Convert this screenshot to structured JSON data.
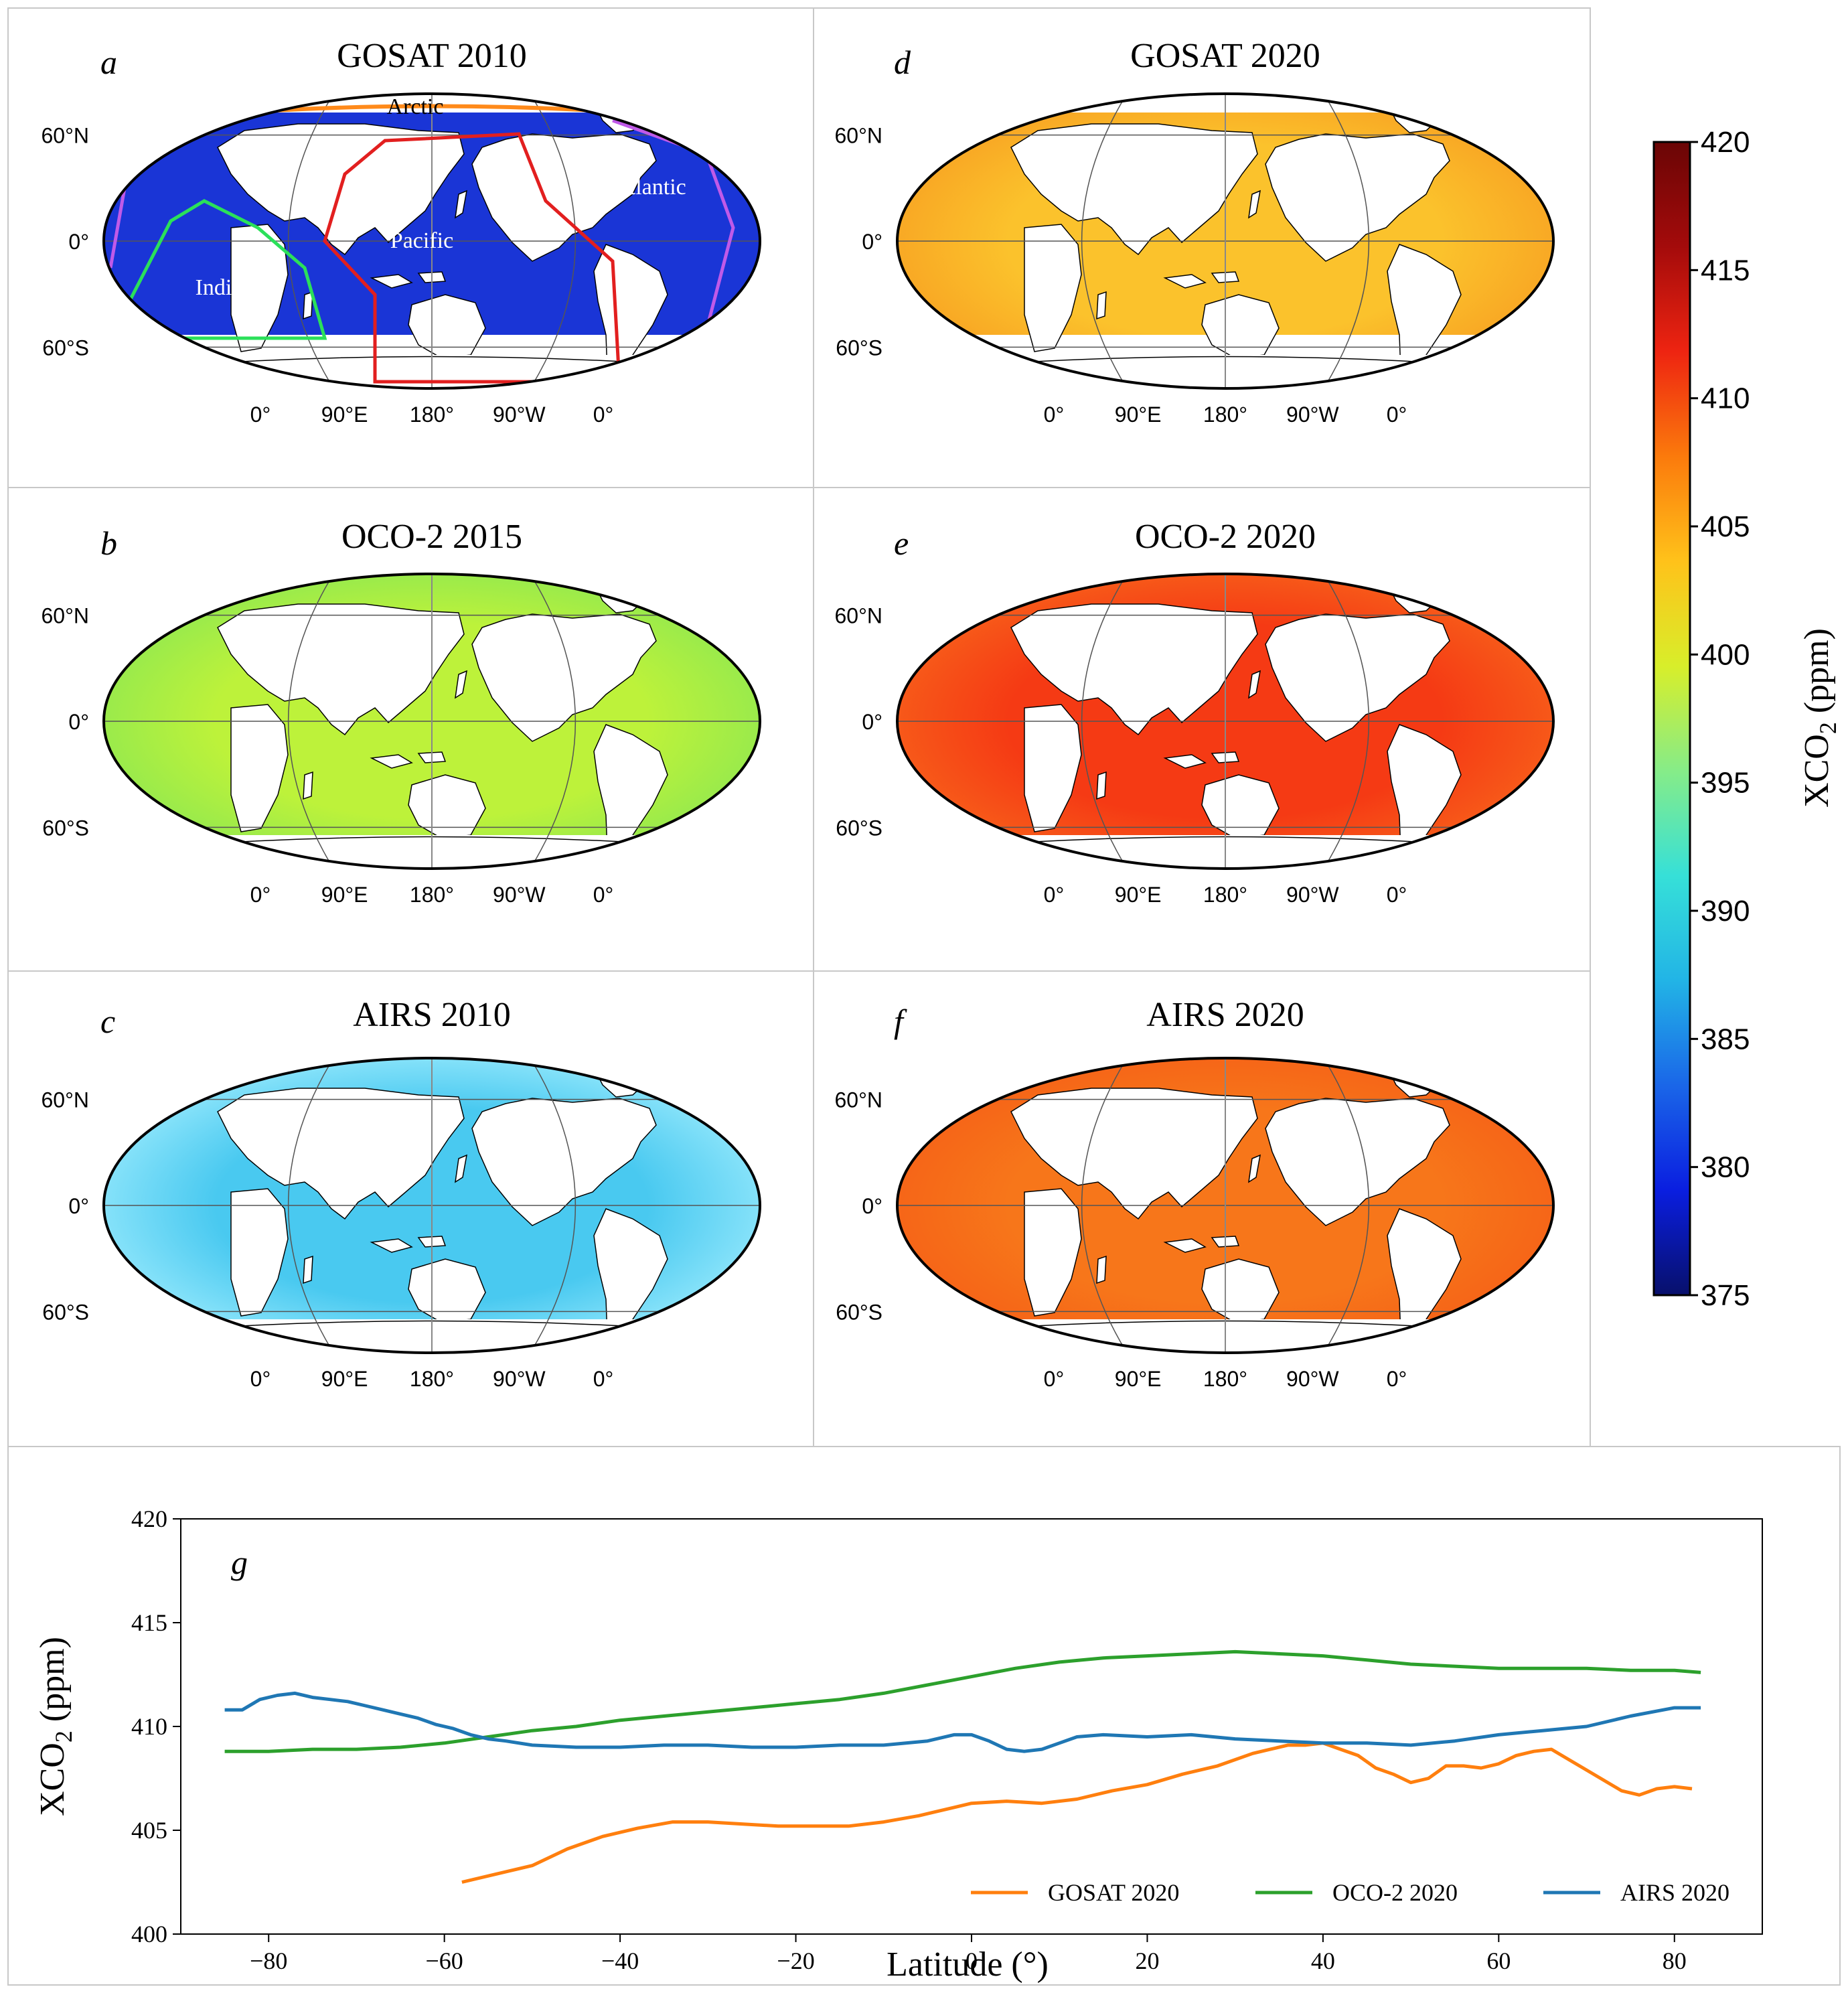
{
  "colorbar": {
    "label": "XCO",
    "label_sub": "2",
    "label_unit": " (ppm)",
    "min": 375,
    "max": 420,
    "ticks": [
      "420",
      "415",
      "410",
      "405",
      "400",
      "395",
      "390",
      "385",
      "380",
      "375"
    ],
    "colors": [
      "#08106b",
      "#0a1ee0",
      "#1a66e8",
      "#22b4e6",
      "#36e0d8",
      "#86ec88",
      "#d8ee2a",
      "#ffc21a",
      "#fb7a0c",
      "#ee2411",
      "#a40b0b",
      "#6a0505"
    ]
  },
  "maps": [
    {
      "id": "a",
      "title": "GOSAT 2010",
      "fill": "#1a35d6",
      "edge": "#1a35d6",
      "ocean_labels": [
        "Arctic",
        "Atlantic",
        "Pacific",
        "Indian"
      ]
    },
    {
      "id": "b",
      "title": "OCO-2 2015",
      "fill": "#bdf23a",
      "edge": "#86e655"
    },
    {
      "id": "c",
      "title": "AIRS 2010",
      "fill": "#49c9f0",
      "edge": "#a8f0ff"
    },
    {
      "id": "d",
      "title": "GOSAT 2020",
      "fill": "#fbc22c",
      "edge": "#f79a20"
    },
    {
      "id": "e",
      "title": "OCO-2 2020",
      "fill": "#f53a14",
      "edge": "#f86a1c"
    },
    {
      "id": "f",
      "title": "AIRS 2020",
      "fill": "#f7761a",
      "edge": "#f55c16"
    }
  ],
  "map_ticks": {
    "lat": [
      "60°N",
      "0°",
      "60°S"
    ],
    "lon": [
      "0°",
      "90°E",
      "180°",
      "90°W",
      "0°"
    ]
  },
  "chart_data": {
    "type": "line",
    "panel_label": "g",
    "xlabel": "Latitude (°)",
    "ylabel": "XCO",
    "ylabel_sub": "2",
    "ylabel_unit": " (ppm)",
    "xlim": [
      -90,
      90
    ],
    "ylim": [
      400,
      420
    ],
    "xticks": [
      -80,
      -60,
      -40,
      -20,
      0,
      20,
      40,
      60,
      80
    ],
    "xtick_labels": [
      "−80",
      "−60",
      "−40",
      "−20",
      "0",
      "20",
      "40",
      "60",
      "80"
    ],
    "yticks": [
      400,
      405,
      410,
      415,
      420
    ],
    "legend_position": "lower-right",
    "series": [
      {
        "name": "GOSAT 2020",
        "color": "#ff7f0e",
        "x": [
          -58,
          -54,
          -50,
          -46,
          -42,
          -38,
          -34,
          -30,
          -26,
          -22,
          -18,
          -14,
          -10,
          -6,
          -2,
          0,
          4,
          8,
          12,
          16,
          20,
          24,
          28,
          32,
          34,
          36,
          38,
          40,
          42,
          44,
          46,
          48,
          50,
          52,
          54,
          56,
          58,
          60,
          62,
          64,
          66,
          68,
          70,
          72,
          74,
          76,
          78,
          80,
          82
        ],
        "y": [
          402.5,
          402.9,
          403.3,
          404.1,
          404.7,
          405.1,
          405.4,
          405.4,
          405.3,
          405.2,
          405.2,
          405.2,
          405.4,
          405.7,
          406.1,
          406.3,
          406.4,
          406.3,
          406.5,
          406.9,
          407.2,
          407.7,
          408.1,
          408.7,
          408.9,
          409.1,
          409.1,
          409.2,
          408.9,
          408.6,
          408.0,
          407.7,
          407.3,
          407.5,
          408.1,
          408.1,
          408.0,
          408.2,
          408.6,
          408.8,
          408.9,
          408.4,
          407.9,
          407.4,
          406.9,
          406.7,
          407.0,
          407.1,
          407.0
        ]
      },
      {
        "name": "OCO-2 2020",
        "color": "#2ca02c",
        "x": [
          -85,
          -80,
          -75,
          -70,
          -65,
          -60,
          -55,
          -50,
          -45,
          -40,
          -35,
          -30,
          -25,
          -20,
          -15,
          -10,
          -5,
          0,
          5,
          10,
          15,
          20,
          25,
          30,
          35,
          40,
          45,
          50,
          55,
          60,
          65,
          70,
          75,
          80,
          83
        ],
        "y": [
          408.8,
          408.8,
          408.9,
          408.9,
          409.0,
          409.2,
          409.5,
          409.8,
          410.0,
          410.3,
          410.5,
          410.7,
          410.9,
          411.1,
          411.3,
          411.6,
          412.0,
          412.4,
          412.8,
          413.1,
          413.3,
          413.4,
          413.5,
          413.6,
          413.5,
          413.4,
          413.2,
          413.0,
          412.9,
          412.8,
          412.8,
          412.8,
          412.7,
          412.7,
          412.6
        ]
      },
      {
        "name": "AIRS 2020",
        "color": "#1f77b4",
        "x": [
          -85,
          -83,
          -81,
          -79,
          -77,
          -75,
          -73,
          -71,
          -69,
          -67,
          -65,
          -63,
          -61,
          -59,
          -57,
          -55,
          -53,
          -50,
          -45,
          -40,
          -35,
          -30,
          -25,
          -20,
          -15,
          -10,
          -5,
          -2,
          0,
          2,
          4,
          6,
          8,
          10,
          12,
          15,
          20,
          25,
          30,
          35,
          40,
          45,
          50,
          55,
          60,
          65,
          70,
          75,
          80,
          83
        ],
        "y": [
          410.8,
          410.8,
          411.3,
          411.5,
          411.6,
          411.4,
          411.3,
          411.2,
          411.0,
          410.8,
          410.6,
          410.4,
          410.1,
          409.9,
          409.6,
          409.4,
          409.3,
          409.1,
          409.0,
          409.0,
          409.1,
          409.1,
          409.0,
          409.0,
          409.1,
          409.1,
          409.3,
          409.6,
          409.6,
          409.3,
          408.9,
          408.8,
          408.9,
          409.2,
          409.5,
          409.6,
          409.5,
          409.6,
          409.4,
          409.3,
          409.2,
          409.2,
          409.1,
          409.3,
          409.6,
          409.8,
          410.0,
          410.5,
          410.9,
          410.9
        ]
      }
    ]
  }
}
